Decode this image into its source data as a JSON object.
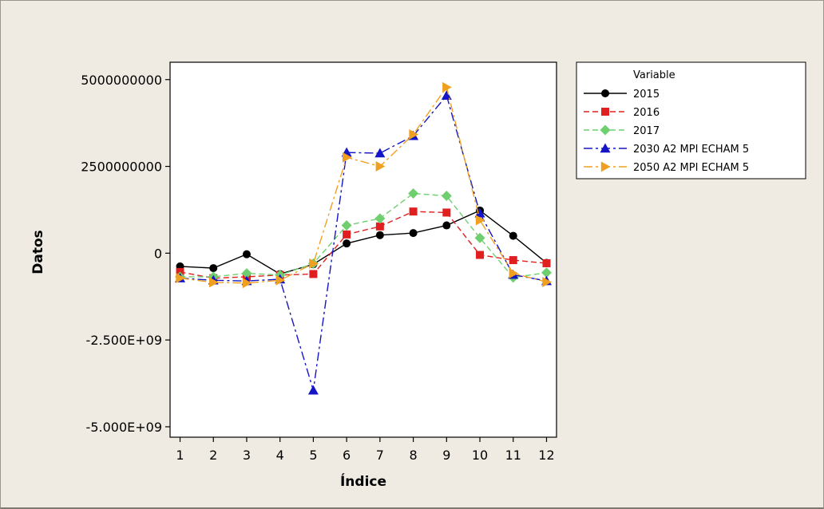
{
  "chart_data": {
    "type": "line",
    "xlabel": "Índice",
    "ylabel": "Datos",
    "x": [
      1,
      2,
      3,
      4,
      5,
      6,
      7,
      8,
      9,
      10,
      11,
      12
    ],
    "xlim": [
      0.7,
      12.3
    ],
    "ylim": [
      -5300000000,
      5500000000
    ],
    "yticks": [
      5000000000,
      2500000000,
      0,
      -2500000000,
      -5000000000
    ],
    "ytick_labels": [
      "5000000000",
      "2500000000",
      "0",
      "-2.500E+09",
      "-5.000E+09"
    ],
    "legend_title": "Variable",
    "legend_position": "right",
    "grid": false,
    "series": [
      {
        "name": "2015",
        "color": "#000000",
        "marker": "circle",
        "dash": "solid",
        "values": [
          -380000000,
          -430000000,
          -30000000,
          -600000000,
          -320000000,
          280000000,
          520000000,
          580000000,
          800000000,
          1230000000,
          500000000,
          -280000000
        ]
      },
      {
        "name": "2016",
        "color": "#e02020",
        "marker": "square",
        "dash": "dash",
        "values": [
          -540000000,
          -720000000,
          -680000000,
          -630000000,
          -600000000,
          540000000,
          770000000,
          1200000000,
          1170000000,
          -50000000,
          -200000000,
          -290000000
        ]
      },
      {
        "name": "2017",
        "color": "#6fcf6f",
        "marker": "diamond",
        "dash": "dash",
        "values": [
          -680000000,
          -680000000,
          -580000000,
          -630000000,
          -300000000,
          800000000,
          1000000000,
          1720000000,
          1650000000,
          440000000,
          -700000000,
          -560000000
        ]
      },
      {
        "name": "2030 A2 MPI ECHAM 5",
        "color": "#1515c8",
        "marker": "triangle-up",
        "dash": "dashdot",
        "values": [
          -720000000,
          -780000000,
          -800000000,
          -750000000,
          -3950000000,
          2900000000,
          2880000000,
          3380000000,
          4540000000,
          1150000000,
          -620000000,
          -800000000
        ]
      },
      {
        "name": "2050 A2 MPI ECHAM 5",
        "color": "#f0a020",
        "marker": "triangle-right",
        "dash": "dashdot",
        "values": [
          -720000000,
          -840000000,
          -860000000,
          -780000000,
          -300000000,
          2760000000,
          2500000000,
          3420000000,
          4780000000,
          950000000,
          -580000000,
          -830000000
        ]
      }
    ]
  }
}
